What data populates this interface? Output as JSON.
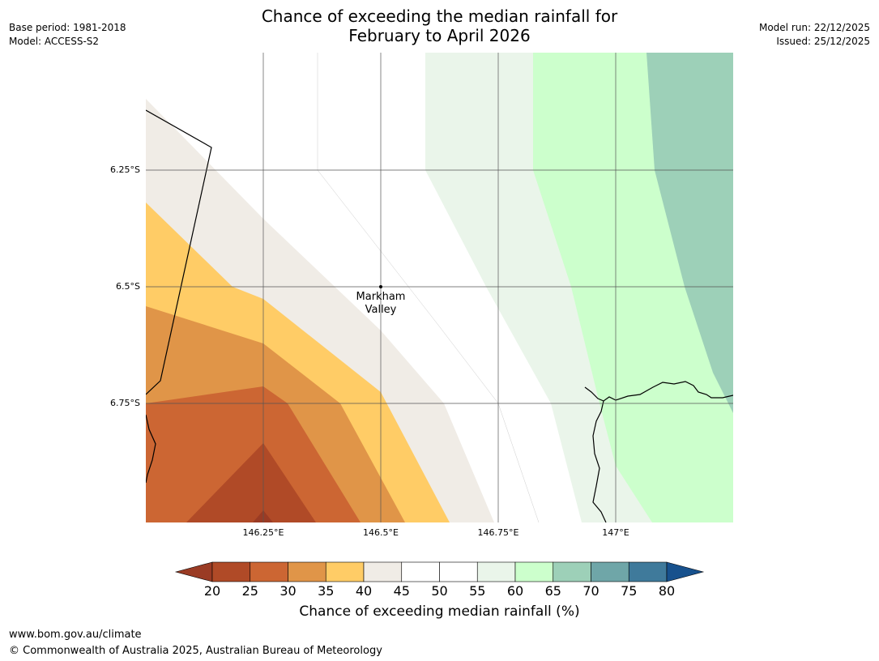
{
  "title": {
    "line1": "Chance of exceeding the median rainfall for",
    "line2": "February to April 2026"
  },
  "meta_left": {
    "base_period": "Base period: 1981-2018",
    "model": "Model: ACCESS-S2"
  },
  "meta_right": {
    "model_run": "Model run: 22/12/2025",
    "issued": "Issued: 25/12/2025"
  },
  "map": {
    "place_label_line1": "Markham",
    "place_label_line2": "Valley",
    "lat_labels": [
      "6.25°S",
      "6.5°S",
      "6.75°S"
    ],
    "lon_labels": [
      "146.25°E",
      "146.5°E",
      "146.75°E",
      "147°E"
    ]
  },
  "colorbar": {
    "title": "Chance of exceeding median rainfall (%)",
    "ticks": [
      "20",
      "25",
      "30",
      "35",
      "40",
      "45",
      "50",
      "55",
      "60",
      "65",
      "70",
      "75",
      "80"
    ],
    "under_color": "#9a3b24",
    "colors": [
      "#b04a27",
      "#cc6633",
      "#e09548",
      "#ffcc66",
      "#f0ece6",
      "#ffffff",
      "#ffffff",
      "#eaf5ea",
      "#ccffcc",
      "#9dd0b8",
      "#6fa6a8",
      "#3f7a9b"
    ],
    "over_color": "#17518d"
  },
  "footer": {
    "url": "www.bom.gov.au/climate",
    "copyright": "© Commonwealth of Australia 2025, Australian Bureau of Meteorology"
  }
}
